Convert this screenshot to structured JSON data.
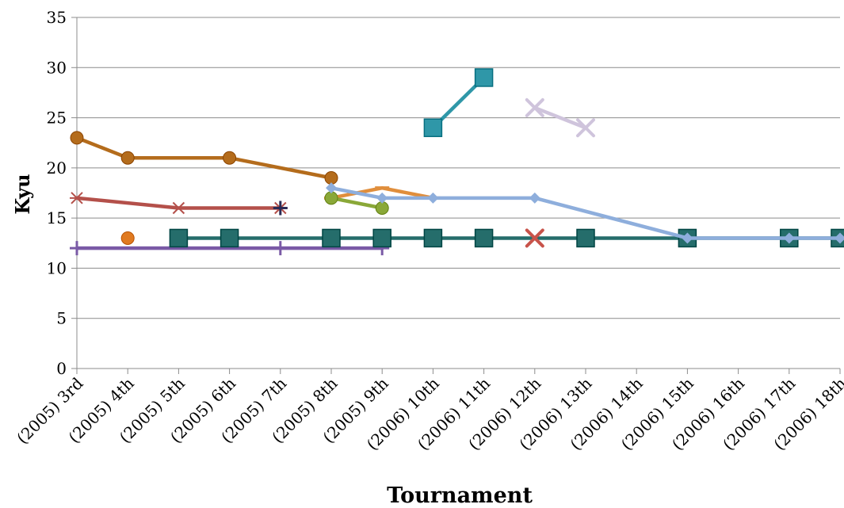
{
  "chart_data": {
    "type": "line",
    "xlabel": "Tournament",
    "ylabel": "Kyu",
    "ylim": [
      0,
      35
    ],
    "ytick_step": 5,
    "grid": true,
    "legend": "none",
    "categories": [
      "(2005) 3rd",
      "(2005) 4th",
      "(2005) 5th",
      "(2005) 6th",
      "(2005) 7th",
      "(2005) 8th",
      "(2005) 9th",
      "(2006) 10th",
      "(2006) 11th",
      "(2006) 12th",
      "(2006) 13th",
      "(2006) 14th",
      "(2006) 15th",
      "(2006) 16th",
      "(2006) 17th",
      "(2006) 18th"
    ],
    "series": [
      {
        "color": "#b46c1c",
        "marker": "circle",
        "values": [
          23,
          21,
          null,
          21,
          null,
          19,
          null,
          null,
          null,
          null,
          null,
          null,
          null,
          null,
          null,
          null
        ]
      },
      {
        "color": "#b4504a",
        "marker": "asterisk",
        "values": [
          17,
          null,
          16,
          null,
          16,
          null,
          null,
          null,
          null,
          null,
          null,
          null,
          null,
          null,
          null,
          null
        ]
      },
      {
        "color": "#7a5aa6",
        "marker": "plus",
        "values": [
          12,
          null,
          null,
          null,
          12,
          null,
          12,
          null,
          null,
          null,
          null,
          null,
          null,
          null,
          null,
          null
        ]
      },
      {
        "color": "#e07a20",
        "marker": "circle",
        "values": [
          null,
          13,
          null,
          null,
          null,
          null,
          null,
          null,
          null,
          null,
          null,
          null,
          null,
          null,
          null,
          null
        ]
      },
      {
        "color": "#256d6b",
        "marker": "square",
        "values": [
          null,
          null,
          13,
          13,
          null,
          13,
          13,
          13,
          13,
          null,
          13,
          null,
          13,
          null,
          13,
          13
        ]
      },
      {
        "color": "#2a2a55",
        "marker": "plus",
        "values": [
          null,
          null,
          null,
          null,
          16,
          null,
          null,
          null,
          null,
          null,
          null,
          null,
          null,
          null,
          null,
          null
        ]
      },
      {
        "color": "#e08e3c",
        "marker": "dash",
        "values": [
          null,
          null,
          null,
          null,
          null,
          17,
          18,
          17,
          null,
          null,
          null,
          null,
          null,
          null,
          null,
          null
        ]
      },
      {
        "color": "#8aa838",
        "marker": "circle",
        "values": [
          null,
          null,
          null,
          null,
          null,
          17,
          16,
          null,
          null,
          null,
          null,
          null,
          null,
          null,
          null,
          null
        ]
      },
      {
        "color": "#8eaedc",
        "marker": "diamond",
        "values": [
          null,
          null,
          null,
          null,
          null,
          18,
          17,
          17,
          null,
          17,
          null,
          null,
          13,
          null,
          13,
          13
        ]
      },
      {
        "color": "#2f97a8",
        "marker": "square",
        "values": [
          null,
          null,
          null,
          null,
          null,
          null,
          null,
          24,
          29,
          null,
          null,
          null,
          null,
          null,
          null,
          null
        ]
      },
      {
        "color": "#c8534a",
        "marker": "x",
        "values": [
          null,
          null,
          null,
          null,
          null,
          null,
          null,
          null,
          null,
          13,
          null,
          null,
          null,
          null,
          null,
          null
        ]
      },
      {
        "color": "#cfc4dc",
        "marker": "x",
        "values": [
          null,
          null,
          null,
          null,
          null,
          null,
          null,
          null,
          null,
          26,
          24,
          null,
          null,
          null,
          null,
          null
        ]
      }
    ]
  }
}
